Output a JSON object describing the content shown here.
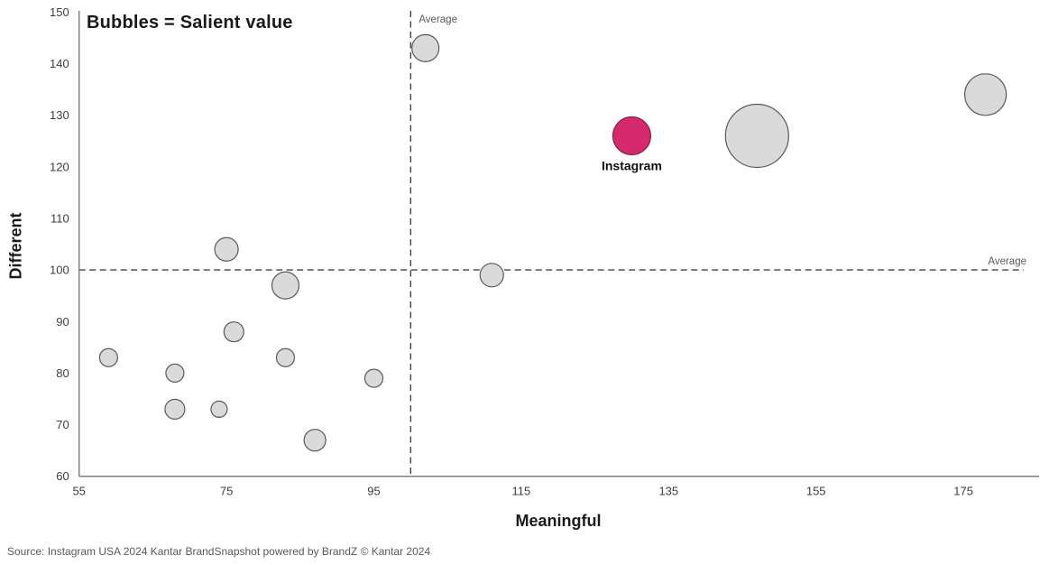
{
  "chart": {
    "note": "Bubbles = Salient value",
    "xlabel": "Meaningful",
    "ylabel": "Different",
    "source": "Source: Instagram USA 2024 Kantar BrandSnapshot powered by BrandZ © Kantar 2024",
    "average_label": "Average"
  },
  "chart_data": {
    "type": "scatter",
    "subtype": "bubble",
    "title": "Bubbles = Salient value",
    "xlabel": "Meaningful",
    "ylabel": "Different",
    "xlim": [
      55,
      185
    ],
    "ylim": [
      60,
      150
    ],
    "xticks": [
      55,
      75,
      95,
      115,
      135,
      155,
      175
    ],
    "yticks": [
      60,
      70,
      80,
      90,
      100,
      110,
      120,
      130,
      140,
      150
    ],
    "grid": false,
    "average_line_x": 100,
    "average_line_y": 100,
    "average_label": "Average",
    "bubble_note": "Bubbles = Salient value (bubble radius in px encodes salience)",
    "colors": {
      "bubble_fill": "#dadada",
      "bubble_stroke": "#595959",
      "highlight_fill": "#d62a6e",
      "axis": "#7f7f7f",
      "dashed_line": "#404040",
      "tick_text": "#3d3d3d",
      "annotation_text": "#595959"
    },
    "points": [
      {
        "x": 59,
        "y": 83,
        "r": 10
      },
      {
        "x": 68,
        "y": 80,
        "r": 10
      },
      {
        "x": 68,
        "y": 73,
        "r": 11
      },
      {
        "x": 74,
        "y": 73,
        "r": 9
      },
      {
        "x": 75,
        "y": 104,
        "r": 13
      },
      {
        "x": 76,
        "y": 88,
        "r": 11
      },
      {
        "x": 83,
        "y": 97,
        "r": 15
      },
      {
        "x": 83,
        "y": 83,
        "r": 10
      },
      {
        "x": 87,
        "y": 67,
        "r": 12
      },
      {
        "x": 95,
        "y": 79,
        "r": 10
      },
      {
        "x": 102,
        "y": 143,
        "r": 15
      },
      {
        "x": 111,
        "y": 99,
        "r": 13
      },
      {
        "x": 130,
        "y": 126,
        "r": 21,
        "label": "Instagram",
        "highlight": true
      },
      {
        "x": 147,
        "y": 126,
        "r": 35
      },
      {
        "x": 178,
        "y": 134,
        "r": 23
      }
    ]
  }
}
